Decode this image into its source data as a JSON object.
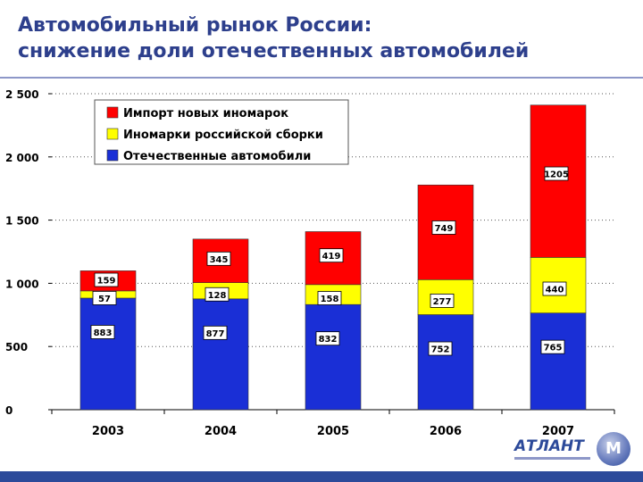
{
  "title": {
    "line1": "Автомобильный рынок России:",
    "line2": "снижение доли отечественных автомобилей"
  },
  "logo": {
    "text": "АТЛАНТ",
    "mark": "M"
  },
  "chart_data": {
    "type": "bar",
    "stacked": true,
    "categories": [
      "2003",
      "2004",
      "2005",
      "2006",
      "2007"
    ],
    "series": [
      {
        "name": "Отечественные автомобили",
        "values": [
          883,
          877,
          832,
          752,
          765
        ],
        "color": "#1a2fd6"
      },
      {
        "name": "Иномарки российской сборки",
        "values": [
          57,
          128,
          158,
          277,
          440
        ],
        "color": "#ffff00"
      },
      {
        "name": "Импорт новых иномарок",
        "values": [
          159,
          345,
          419,
          749,
          1205
        ],
        "color": "#ff0000"
      }
    ],
    "legend_order": [
      "Импорт новых иномарок",
      "Иномарки российской сборки",
      "Отечественные автомобили"
    ],
    "y_ticks": [
      "0",
      "500",
      "1 000",
      "1 500",
      "2 000",
      "2 500"
    ],
    "y_tick_values": [
      0,
      500,
      1000,
      1500,
      2000,
      2500
    ],
    "ylim": [
      0,
      2500
    ],
    "grid": "dotted",
    "legend_position": "top-left"
  }
}
